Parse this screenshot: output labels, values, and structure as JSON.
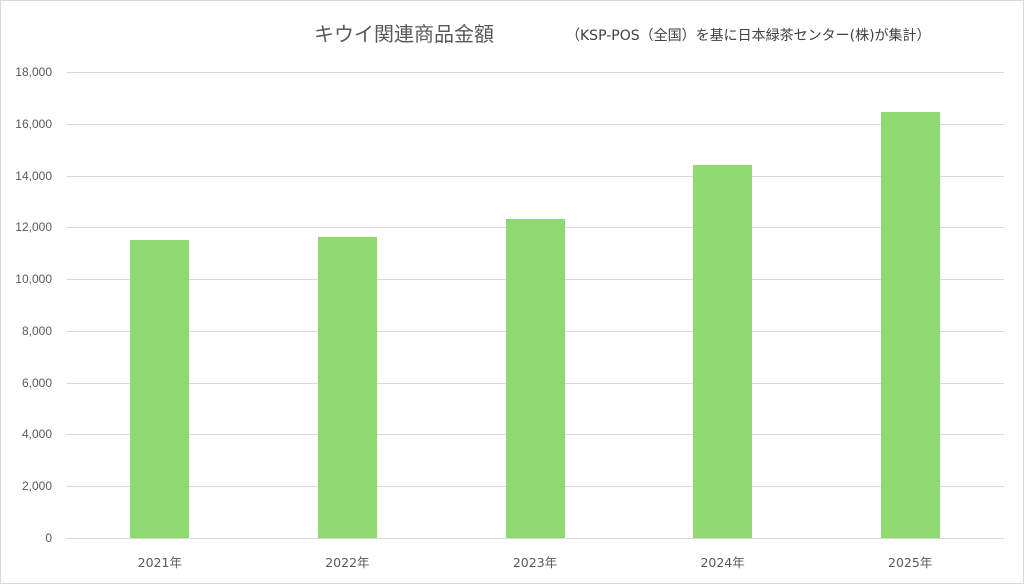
{
  "chart_data": {
    "type": "bar",
    "title": "キウイ関連商品金額",
    "subtitle": "（KSP-POS（全国）を基に日本緑茶センター(株)が集計）",
    "categories": [
      "2021年",
      "2022年",
      "2023年",
      "2024年",
      "2025年"
    ],
    "values": [
      11500,
      11620,
      12320,
      14400,
      16450
    ],
    "xlabel": "",
    "ylabel": "",
    "ylim": [
      0,
      18000
    ],
    "yticks": [
      0,
      2000,
      4000,
      6000,
      8000,
      10000,
      12000,
      14000,
      16000,
      18000
    ],
    "ytick_labels": [
      "0",
      "2,000",
      "4,000",
      "6,000",
      "8,000",
      "10,000",
      "12,000",
      "14,000",
      "16,000",
      "18,000"
    ],
    "grid": true,
    "legend": false,
    "bar_color": "#8fd973"
  }
}
